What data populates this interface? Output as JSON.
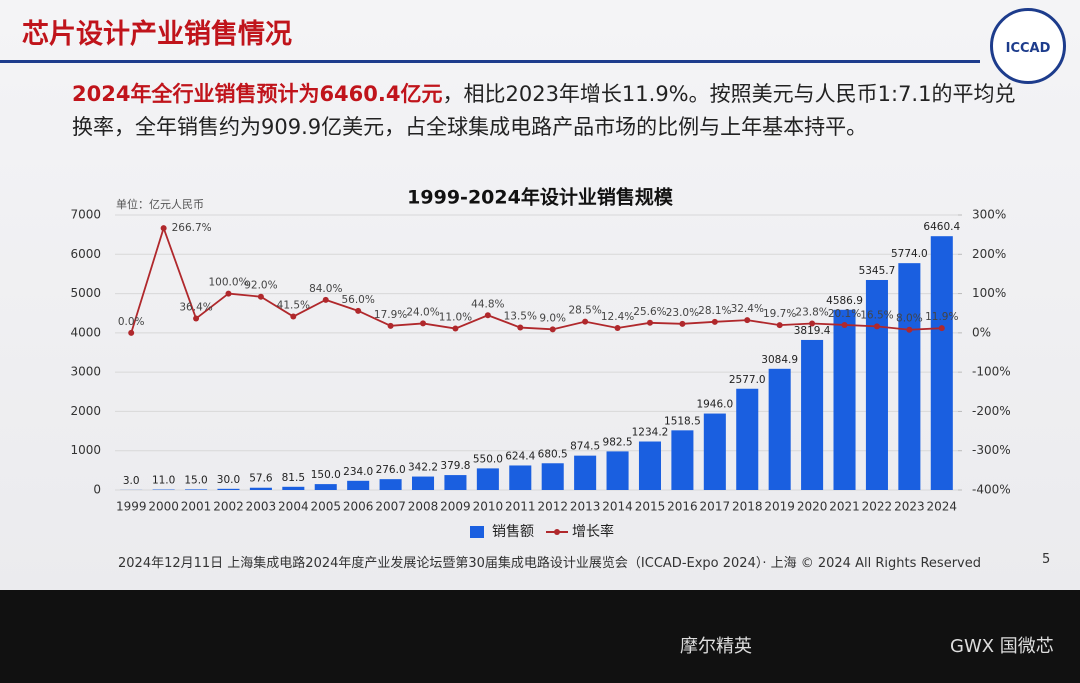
{
  "slide": {
    "title": "芯片设计产业销售情况",
    "logo": "ICCAD",
    "highlight": "2024年全行业销售预计为6460.4亿元",
    "text": "，相比2023年增长11.9%。按照美元与人民币1:7.1的平均兑换率，全年销售约为909.9亿美元，占全球集成电路产品市场的比例与上年基本持平。",
    "footer": "2024年12月11日 上海集成电路2024年度产业发展论坛暨第30届集成电路设计业展览会（ICCAD-Expo 2024）· 上海 © 2024 All Rights Reserved",
    "page": "5",
    "sponsors": [
      "摩尔精英",
      "GWX 国微芯"
    ]
  },
  "chart_data": {
    "type": "bar",
    "title": "1999-2024年设计业销售规模",
    "y_label": "单位：亿元人民币",
    "categories": [
      "1999",
      "2000",
      "2001",
      "2002",
      "2003",
      "2004",
      "2005",
      "2006",
      "2007",
      "2008",
      "2009",
      "2010",
      "2011",
      "2012",
      "2013",
      "2014",
      "2015",
      "2016",
      "2017",
      "2018",
      "2019",
      "2020",
      "2021",
      "2022",
      "2023",
      "2024"
    ],
    "series": [
      {
        "name": "销售额",
        "color": "#1a5fe0",
        "values": [
          3,
          11,
          15,
          30,
          57.6,
          81.5,
          150,
          234,
          276,
          342.2,
          379.8,
          550,
          624.4,
          680.5,
          874.5,
          982.5,
          1234.2,
          1518.5,
          1946,
          2577,
          3084.9,
          3819.4,
          4586.9,
          5345.7,
          5774,
          6460.4
        ],
        "value_labels": [
          "3.0",
          "11.0",
          "15.0",
          "30.0",
          "57.6",
          "81.5",
          "150.0",
          "234.0",
          "276.0",
          "342.2",
          "379.8",
          "550.0",
          "624.4",
          "680.5",
          "874.5",
          "982.5",
          "1234.2",
          "1518.5",
          "1946.0",
          "2577.0",
          "3084.9",
          "3819.4",
          "4586.9",
          "5345.7",
          "5774.0",
          "6460.4"
        ]
      },
      {
        "name": "增长率",
        "color": "#b0282c",
        "type": "line",
        "axis": "y2",
        "values": [
          0,
          266.7,
          36.4,
          100,
          92,
          41.5,
          84,
          56,
          17.9,
          24,
          11,
          44.8,
          13.5,
          9,
          28.5,
          12.4,
          25.6,
          23,
          28.1,
          32.4,
          19.7,
          23.8,
          20.1,
          16.5,
          8,
          11.9
        ],
        "value_labels": [
          "0.0%",
          "266.7%",
          "36.4%",
          "100.0%",
          "92.0%",
          "41.5%",
          "84.0%",
          "56.0%",
          "17.9%",
          "24.0%",
          "11.0%",
          "44.8%",
          "13.5%",
          "9.0%",
          "28.5%",
          "12.4%",
          "25.6%",
          "23.0%",
          "28.1%",
          "32.4%",
          "19.7%",
          "23.8%",
          "20.1%",
          "16.5%",
          "8.0%",
          "11.9%"
        ]
      }
    ],
    "ylim": [
      0,
      7000
    ],
    "yticks": [
      0,
      1000,
      2000,
      3000,
      4000,
      5000,
      6000,
      7000
    ],
    "y2lim": [
      -400,
      300
    ],
    "y2ticks": [
      {
        "value": -400,
        "label": "-400%"
      },
      {
        "value": -300,
        "label": "-300%"
      },
      {
        "value": -200,
        "label": "-200%"
      },
      {
        "value": -100,
        "label": "-100%"
      },
      {
        "value": 0,
        "label": "0%"
      },
      {
        "value": 100,
        "label": "100%"
      },
      {
        "value": 200,
        "label": "200%"
      },
      {
        "value": 300,
        "label": "300%"
      }
    ],
    "grid": true,
    "legend": "bottom"
  }
}
